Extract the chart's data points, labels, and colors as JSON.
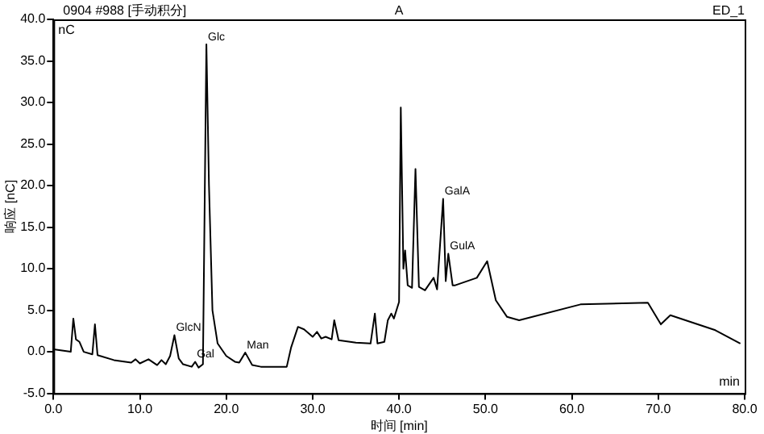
{
  "chart_data": {
    "type": "line",
    "xlabel": "时间 [min]",
    "ylabel": "响应 [nC]",
    "x": [
      0,
      2.0,
      2.3,
      2.6,
      3.0,
      3.5,
      4.5,
      4.8,
      5.1,
      7,
      9,
      9.5,
      10,
      11,
      12,
      12.5,
      13,
      13.5,
      14.0,
      14.5,
      15,
      16,
      16.4,
      16.8,
      17.3,
      17.7,
      18.0,
      18.4,
      19,
      20,
      21,
      21.5,
      22.2,
      23,
      24,
      27,
      27.5,
      28.3,
      29,
      30,
      30.5,
      31,
      31.5,
      32.2,
      32.5,
      33,
      35,
      36.7,
      37.2,
      37.5,
      38.3,
      38.7,
      39.1,
      39.4,
      40.0,
      40.2,
      40.5,
      40.7,
      41.0,
      41.5,
      41.9,
      42.3,
      43,
      44.0,
      44.4,
      45.1,
      45.4,
      45.7,
      46.2,
      46.5,
      49,
      50.2,
      51.2,
      52.5,
      53.9,
      61,
      68.8,
      70.3,
      71.4,
      76.6,
      79.5
    ],
    "series": [
      {
        "color": "#000000",
        "values": [
          0.3,
          0,
          4.0,
          1.5,
          1.2,
          0,
          -0.3,
          3.3,
          -0.4,
          -1.0,
          -1.3,
          -0.9,
          -1.4,
          -0.9,
          -1.6,
          -1.0,
          -1.5,
          -0.5,
          2.0,
          -0.8,
          -1.5,
          -1.8,
          -1.2,
          -1.9,
          -1.5,
          37.0,
          20,
          5,
          1,
          -0.5,
          -1.2,
          -1.3,
          -0.1,
          -1.6,
          -1.8,
          -1.8,
          0.5,
          3.0,
          2.7,
          1.8,
          2.4,
          1.6,
          1.8,
          1.5,
          3.8,
          1.4,
          1.1,
          1.0,
          4.6,
          1.0,
          1.2,
          3.8,
          4.6,
          4.0,
          6.0,
          29.4,
          10,
          12.2,
          8.0,
          7.7,
          22.0,
          7.8,
          7.4,
          8.9,
          7.5,
          18.4,
          8.5,
          11.8,
          8.0,
          8.0,
          8.9,
          10.9,
          6.2,
          4.2,
          3.8,
          5.7,
          5.9,
          3.3,
          4.4,
          2.6,
          1.0
        ]
      }
    ],
    "xlim": [
      0,
      80
    ],
    "ylim": [
      -5,
      40
    ],
    "xticks": [
      {
        "value": 0,
        "label": "0.0"
      },
      {
        "value": 10,
        "label": "10.0"
      },
      {
        "value": 20,
        "label": "20.0"
      },
      {
        "value": 30,
        "label": "30.0"
      },
      {
        "value": 40,
        "label": "40.0"
      },
      {
        "value": 50,
        "label": "50.0"
      },
      {
        "value": 60,
        "label": "60.0"
      },
      {
        "value": 70,
        "label": "70.0"
      },
      {
        "value": 80,
        "label": "80.0"
      }
    ],
    "yticks": [
      {
        "value": -5,
        "label": "-5.0"
      },
      {
        "value": 0,
        "label": "0.0"
      },
      {
        "value": 5,
        "label": "5.0"
      },
      {
        "value": 10,
        "label": "10.0"
      },
      {
        "value": 15,
        "label": "15.0"
      },
      {
        "value": 20,
        "label": "20.0"
      },
      {
        "value": 25,
        "label": "25.0"
      },
      {
        "value": 30,
        "label": "30.0"
      },
      {
        "value": 35,
        "label": "35.0"
      },
      {
        "value": 40,
        "label": "40.0"
      }
    ],
    "grid": false,
    "legend": false,
    "marker": "none",
    "line_style": "solid",
    "annotations": [
      "0904 #988 [手动积分]",
      "A",
      "ED_1",
      "nC",
      "min",
      {
        "text": "Glc",
        "x": 17.7,
        "y": 37.0
      },
      {
        "text": "GlcN",
        "x": 14.0,
        "y": 2.0
      },
      {
        "text": "Gal",
        "x": 16.4,
        "y": -1.2
      },
      {
        "text": "Man",
        "x": 22.2,
        "y": -0.1
      },
      {
        "text": "GalA",
        "x": 45.1,
        "y": 18.4
      },
      {
        "text": "GulA",
        "x": 45.7,
        "y": 11.8
      }
    ]
  }
}
